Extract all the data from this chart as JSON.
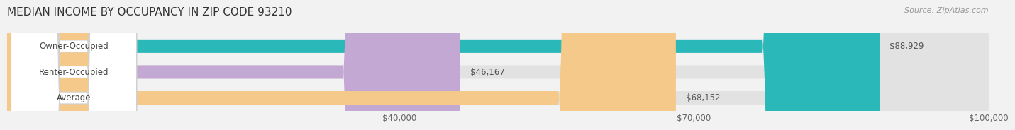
{
  "title": "MEDIAN INCOME BY OCCUPANCY IN ZIP CODE 93210",
  "source": "Source: ZipAtlas.com",
  "categories": [
    "Owner-Occupied",
    "Renter-Occupied",
    "Average"
  ],
  "values": [
    88929,
    46167,
    68152
  ],
  "bar_colors": [
    "#2ab8b8",
    "#c4a8d4",
    "#f5c98a"
  ],
  "bar_labels": [
    "$88,929",
    "$46,167",
    "$68,152"
  ],
  "xlim": [
    0,
    100000
  ],
  "xticks": [
    40000,
    70000,
    100000
  ],
  "xtick_labels": [
    "$40,000",
    "$70,000",
    "$100,000"
  ],
  "background_color": "#f2f2f2",
  "bar_background_color": "#e2e2e2",
  "title_fontsize": 11,
  "source_fontsize": 8,
  "label_fontsize": 8.5,
  "tick_fontsize": 8.5
}
